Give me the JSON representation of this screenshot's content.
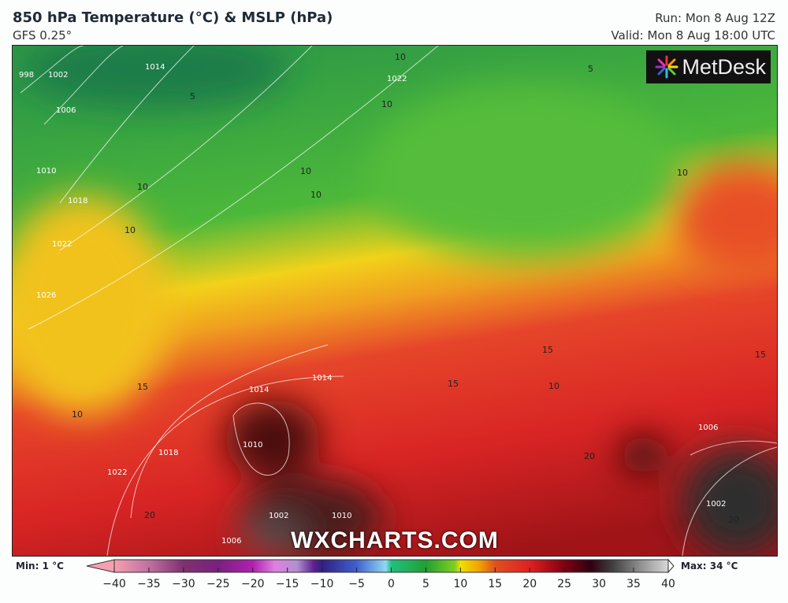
{
  "header": {
    "title": "850 hPa Temperature (°C) & MSLP (hPa)",
    "model": "GFS 0.25°",
    "run": "Run: Mon 8 Aug 12Z",
    "valid": "Valid: Mon 8 Aug 18:00 UTC"
  },
  "logo": {
    "text": "MetDesk"
  },
  "watermark": "WXCHARTS.COM",
  "map": {
    "temperature_labels": [
      "10",
      "10",
      "10",
      "10",
      "10",
      "10",
      "10",
      "10",
      "5",
      "5",
      "15",
      "15",
      "15",
      "15",
      "20",
      "20",
      "20",
      "10"
    ],
    "isobar_labels": [
      "998",
      "1002",
      "1006",
      "1010",
      "1014",
      "1018",
      "1022",
      "1026",
      "1022",
      "1014",
      "1014",
      "1010",
      "1018",
      "1022",
      "1010",
      "1006",
      "1002",
      "1006",
      "1002"
    ]
  },
  "legend": {
    "min_label": "Min: 1 °C",
    "max_label": "Max: 34 °C",
    "ticks": [
      "−40",
      "−35",
      "−30",
      "−25",
      "−20",
      "−15",
      "−10",
      "−5",
      "0",
      "5",
      "10",
      "15",
      "20",
      "25",
      "30",
      "35",
      "40"
    ],
    "colors": {
      "cold": "#f4a0b0",
      "purple": "#7a2080",
      "blue": "#3050c0",
      "green": "#20a030",
      "yellow": "#f0e000",
      "red": "#e02020",
      "darkred": "#300010",
      "grey": "#909090"
    }
  }
}
